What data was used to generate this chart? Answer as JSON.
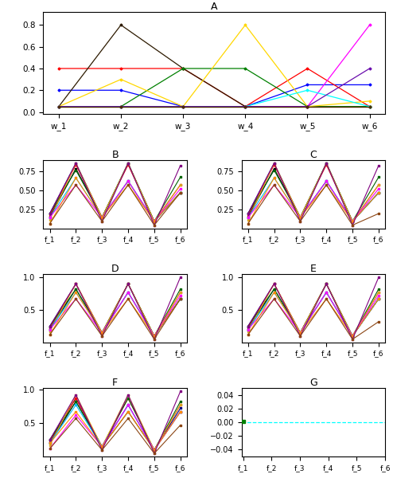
{
  "title_A": "A",
  "title_B": "B",
  "title_C": "C",
  "title_D": "D",
  "title_E": "E",
  "title_F": "F",
  "title_G": "G",
  "x_labels_A": [
    "w_1",
    "w_2",
    "w_3",
    "w_4",
    "w_5",
    "w_6"
  ],
  "x_labels_f": [
    "f_1",
    "f_2",
    "f_3",
    "f_4",
    "f_5",
    "f_6"
  ],
  "A_colors": [
    "blue",
    "red",
    "#2d1a00",
    "green",
    "gold",
    "#8B7355",
    "magenta",
    "cyan",
    "#6A0DAD",
    "#4a2a00"
  ],
  "A_lines": [
    [
      0.2,
      0.2,
      0.05,
      0.05,
      0.25,
      0.25
    ],
    [
      0.4,
      0.4,
      0.4,
      0.05,
      0.4,
      0.05
    ],
    [
      0.05,
      0.8,
      0.4,
      0.05,
      0.05,
      0.05
    ],
    [
      0.05,
      0.05,
      0.4,
      0.4,
      0.05,
      0.05
    ],
    [
      0.05,
      0.3,
      0.05,
      0.8,
      0.05,
      0.1
    ],
    [
      0.05,
      0.05,
      0.05,
      0.05,
      0.05,
      0.05
    ],
    [
      0.05,
      0.05,
      0.05,
      0.05,
      0.05,
      0.8
    ],
    [
      0.05,
      0.05,
      0.05,
      0.05,
      0.2,
      0.05
    ],
    [
      0.05,
      0.05,
      0.05,
      0.05,
      0.05,
      0.4
    ],
    [
      0.05,
      0.05,
      0.05,
      0.05,
      0.05,
      0.05
    ]
  ],
  "sol_colors": [
    "navy",
    "red",
    "black",
    "darkgreen",
    "goldenrod",
    "deepskyblue",
    "magenta",
    "darkorange",
    "purple",
    "saddlebrown"
  ],
  "B_lines": [
    [
      0.2,
      0.85,
      0.15,
      0.85,
      0.1,
      0.47
    ],
    [
      0.17,
      0.83,
      0.15,
      0.83,
      0.1,
      0.57
    ],
    [
      0.15,
      0.78,
      0.15,
      0.62,
      0.1,
      0.47
    ],
    [
      0.2,
      0.76,
      0.15,
      0.85,
      0.1,
      0.67
    ],
    [
      0.12,
      0.85,
      0.15,
      0.85,
      0.1,
      0.57
    ],
    [
      0.15,
      0.66,
      0.15,
      0.62,
      0.1,
      0.47
    ],
    [
      0.15,
      0.57,
      0.15,
      0.62,
      0.1,
      0.52
    ],
    [
      0.07,
      0.66,
      0.15,
      0.57,
      0.1,
      0.47
    ],
    [
      0.2,
      0.85,
      0.1,
      0.85,
      0.05,
      0.82
    ],
    [
      0.07,
      0.57,
      0.1,
      0.57,
      0.05,
      0.47
    ]
  ],
  "C_lines": [
    [
      0.2,
      0.85,
      0.15,
      0.85,
      0.1,
      0.47
    ],
    [
      0.17,
      0.83,
      0.15,
      0.83,
      0.1,
      0.57
    ],
    [
      0.15,
      0.78,
      0.15,
      0.62,
      0.1,
      0.47
    ],
    [
      0.2,
      0.76,
      0.15,
      0.85,
      0.1,
      0.67
    ],
    [
      0.12,
      0.85,
      0.15,
      0.85,
      0.1,
      0.57
    ],
    [
      0.15,
      0.66,
      0.15,
      0.62,
      0.1,
      0.47
    ],
    [
      0.15,
      0.57,
      0.15,
      0.62,
      0.1,
      0.52
    ],
    [
      0.07,
      0.66,
      0.15,
      0.57,
      0.1,
      0.47
    ],
    [
      0.2,
      0.85,
      0.1,
      0.85,
      0.05,
      0.82
    ],
    [
      0.07,
      0.57,
      0.1,
      0.57,
      0.05,
      0.2
    ]
  ],
  "D_lines": [
    [
      0.25,
      0.9,
      0.15,
      0.9,
      0.1,
      0.67
    ],
    [
      0.22,
      0.9,
      0.15,
      0.9,
      0.1,
      0.77
    ],
    [
      0.2,
      0.82,
      0.15,
      0.77,
      0.1,
      0.67
    ],
    [
      0.25,
      0.82,
      0.15,
      0.9,
      0.1,
      0.82
    ],
    [
      0.17,
      0.9,
      0.15,
      0.9,
      0.1,
      0.77
    ],
    [
      0.2,
      0.77,
      0.15,
      0.77,
      0.1,
      0.67
    ],
    [
      0.2,
      0.67,
      0.15,
      0.77,
      0.1,
      0.72
    ],
    [
      0.12,
      0.77,
      0.15,
      0.67,
      0.1,
      0.67
    ],
    [
      0.25,
      0.9,
      0.1,
      0.9,
      0.05,
      1.0
    ],
    [
      0.12,
      0.67,
      0.1,
      0.67,
      0.05,
      0.67
    ]
  ],
  "E_lines": [
    [
      0.25,
      0.9,
      0.15,
      0.9,
      0.1,
      0.67
    ],
    [
      0.22,
      0.9,
      0.15,
      0.9,
      0.1,
      0.77
    ],
    [
      0.2,
      0.82,
      0.15,
      0.77,
      0.1,
      0.67
    ],
    [
      0.25,
      0.82,
      0.15,
      0.9,
      0.1,
      0.82
    ],
    [
      0.17,
      0.9,
      0.15,
      0.9,
      0.1,
      0.77
    ],
    [
      0.2,
      0.77,
      0.15,
      0.77,
      0.1,
      0.67
    ],
    [
      0.2,
      0.67,
      0.15,
      0.77,
      0.1,
      0.72
    ],
    [
      0.12,
      0.77,
      0.15,
      0.67,
      0.1,
      0.67
    ],
    [
      0.25,
      0.9,
      0.1,
      0.9,
      0.05,
      1.0
    ],
    [
      0.12,
      0.67,
      0.1,
      0.67,
      0.05,
      0.32
    ]
  ],
  "F_lines": [
    [
      0.25,
      0.87,
      0.15,
      0.77,
      0.1,
      0.72
    ],
    [
      0.22,
      0.87,
      0.15,
      0.87,
      0.1,
      0.77
    ],
    [
      0.2,
      0.82,
      0.15,
      0.67,
      0.1,
      0.67
    ],
    [
      0.25,
      0.82,
      0.15,
      0.87,
      0.1,
      0.82
    ],
    [
      0.17,
      0.92,
      0.15,
      0.92,
      0.1,
      0.77
    ],
    [
      0.2,
      0.77,
      0.15,
      0.77,
      0.1,
      0.67
    ],
    [
      0.12,
      0.62,
      0.15,
      0.77,
      0.1,
      0.67
    ],
    [
      0.2,
      0.67,
      0.15,
      0.67,
      0.1,
      0.67
    ],
    [
      0.25,
      0.92,
      0.1,
      0.92,
      0.05,
      0.97
    ],
    [
      0.12,
      0.57,
      0.1,
      0.57,
      0.05,
      0.47
    ]
  ],
  "G_yticks": [
    -0.04,
    -0.02,
    0.0,
    0.02,
    0.04
  ],
  "G_ylim": [
    -0.05,
    0.05
  ]
}
